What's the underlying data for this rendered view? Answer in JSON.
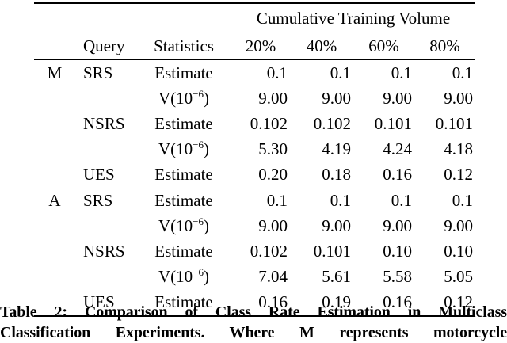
{
  "colors": {
    "text": "#000000",
    "background": "#ffffff",
    "rule": "#000000"
  },
  "table": {
    "spanner": "Cumulative Training Volume",
    "columns": {
      "query": "Query",
      "statistics": "Statistics",
      "p20": "20%",
      "p40": "40%",
      "p60": "60%",
      "p80": "80%"
    },
    "rows": [
      {
        "group": "M",
        "query": "SRS",
        "stat": {
          "pre": "Estimate",
          "sup": "",
          "post": ""
        },
        "values": [
          "0.1",
          "0.1",
          "0.1",
          "0.1"
        ]
      },
      {
        "group": "",
        "query": "",
        "stat": {
          "pre": "V(10",
          "sup": "−6",
          "post": ")"
        },
        "values": [
          "9.00",
          "9.00",
          "9.00",
          "9.00"
        ]
      },
      {
        "group": "",
        "query": "NSRS",
        "stat": {
          "pre": "Estimate",
          "sup": "",
          "post": ""
        },
        "values": [
          "0.102",
          "0.102",
          "0.101",
          "0.101"
        ]
      },
      {
        "group": "",
        "query": "",
        "stat": {
          "pre": "V(10",
          "sup": "−6",
          "post": ")"
        },
        "values": [
          "5.30",
          "4.19",
          "4.24",
          "4.18"
        ]
      },
      {
        "group": "",
        "query": "UES",
        "stat": {
          "pre": "Estimate",
          "sup": "",
          "post": ""
        },
        "values": [
          "0.20",
          "0.18",
          "0.16",
          "0.12"
        ]
      },
      {
        "group": "A",
        "query": "SRS",
        "stat": {
          "pre": "Estimate",
          "sup": "",
          "post": ""
        },
        "values": [
          "0.1",
          "0.1",
          "0.1",
          "0.1"
        ]
      },
      {
        "group": "",
        "query": "",
        "stat": {
          "pre": "V(10",
          "sup": "−6",
          "post": ")"
        },
        "values": [
          "9.00",
          "9.00",
          "9.00",
          "9.00"
        ]
      },
      {
        "group": "",
        "query": "NSRS",
        "stat": {
          "pre": "Estimate",
          "sup": "",
          "post": ""
        },
        "values": [
          "0.102",
          "0.101",
          "0.10",
          "0.10"
        ]
      },
      {
        "group": "",
        "query": "",
        "stat": {
          "pre": "V(10",
          "sup": "−6",
          "post": ")"
        },
        "values": [
          "7.04",
          "5.61",
          "5.58",
          "5.05"
        ]
      },
      {
        "group": "",
        "query": "UES",
        "stat": {
          "pre": "Estimate",
          "sup": "",
          "post": ""
        },
        "values": [
          "0.16",
          "0.19",
          "0.16",
          "0.12"
        ]
      }
    ]
  },
  "caption": {
    "line1": "Table 2: Comparison of Class Rate Estimation in Multiclass",
    "line2": "Classification Experiments. Where M represents motorcycle"
  }
}
